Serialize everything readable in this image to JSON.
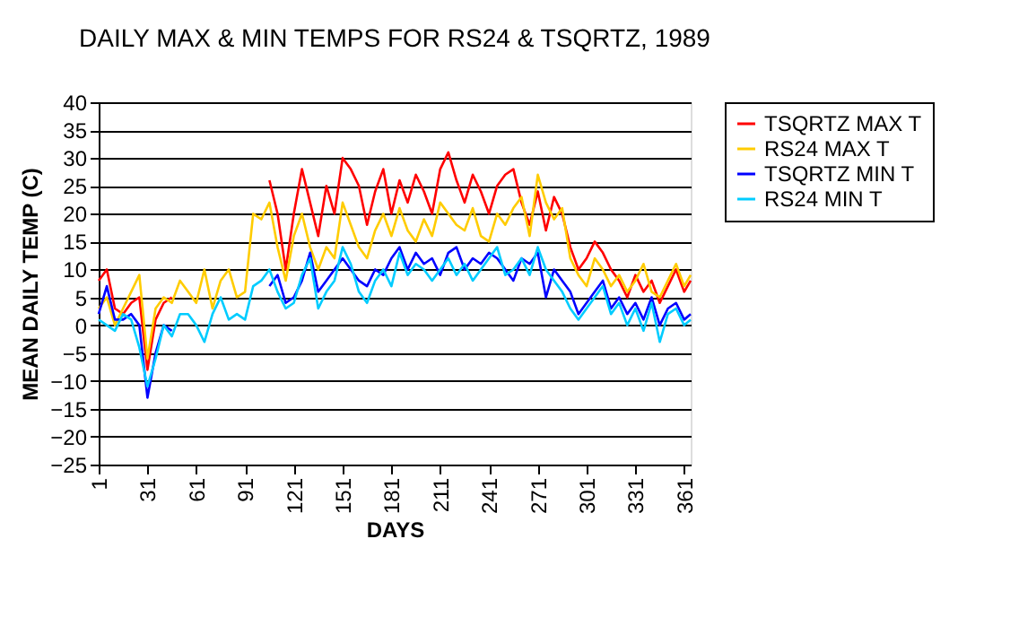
{
  "chart_data": {
    "type": "line",
    "title": "DAILY MAX & MIN TEMPS FOR RS24 & TSQRTZ, 1989",
    "xlabel": "DAYS",
    "ylabel": "MEAN DAILY TEMP (C)",
    "x": [
      1,
      6,
      11,
      16,
      21,
      26,
      31,
      36,
      41,
      46,
      51,
      56,
      61,
      66,
      71,
      76,
      81,
      86,
      91,
      96,
      101,
      106,
      111,
      116,
      121,
      126,
      131,
      136,
      141,
      146,
      151,
      156,
      161,
      166,
      171,
      176,
      181,
      186,
      191,
      196,
      201,
      206,
      211,
      216,
      221,
      226,
      231,
      236,
      241,
      246,
      251,
      256,
      261,
      266,
      271,
      276,
      281,
      286,
      291,
      296,
      301,
      306,
      311,
      316,
      321,
      326,
      331,
      336,
      341,
      346,
      351,
      356,
      361,
      365
    ],
    "series": [
      {
        "name": "TSQRTZ MAX T",
        "color": "#ff0000",
        "values": [
          8,
          10,
          3,
          2,
          4,
          5,
          -8,
          1,
          4,
          5,
          null,
          null,
          null,
          null,
          null,
          null,
          null,
          null,
          null,
          null,
          null,
          26,
          20,
          10,
          20,
          28,
          22,
          16,
          25,
          20,
          30,
          28,
          25,
          18,
          24,
          28,
          20,
          26,
          22,
          27,
          24,
          20,
          28,
          31,
          26,
          22,
          27,
          24,
          20,
          25,
          27,
          28,
          22,
          18,
          24,
          17,
          23,
          20,
          14,
          10,
          12,
          15,
          13,
          10,
          8,
          5,
          9,
          6,
          8,
          4,
          7,
          10,
          6,
          8
        ]
      },
      {
        "name": "RS24 MAX T",
        "color": "#ffcc00",
        "values": [
          3,
          5,
          0,
          3,
          6,
          9,
          -6,
          3,
          5,
          4,
          8,
          6,
          4,
          10,
          3,
          8,
          10,
          5,
          6,
          20,
          19,
          22,
          14,
          8,
          16,
          20,
          14,
          10,
          14,
          12,
          22,
          18,
          14,
          12,
          17,
          20,
          16,
          21,
          17,
          15,
          19,
          16,
          22,
          20,
          18,
          17,
          21,
          16,
          15,
          20,
          18,
          21,
          23,
          16,
          27,
          22,
          19,
          21,
          12,
          9,
          7,
          12,
          10,
          7,
          9,
          6,
          8,
          11,
          6,
          5,
          8,
          11,
          7,
          9
        ]
      },
      {
        "name": "TSQRTZ MIN T",
        "color": "#0000ff",
        "values": [
          2,
          7,
          1,
          1,
          2,
          0,
          -13,
          -5,
          0,
          -1,
          null,
          null,
          null,
          null,
          null,
          null,
          null,
          null,
          null,
          null,
          null,
          7,
          9,
          4,
          5,
          8,
          13,
          6,
          8,
          10,
          12,
          10,
          8,
          7,
          10,
          9,
          12,
          14,
          10,
          13,
          11,
          12,
          9,
          13,
          14,
          10,
          12,
          11,
          13,
          12,
          10,
          8,
          12,
          11,
          13,
          5,
          10,
          8,
          6,
          2,
          4,
          6,
          8,
          3,
          5,
          2,
          4,
          1,
          5,
          0,
          3,
          4,
          1,
          2
        ]
      },
      {
        "name": "RS24 MIN T",
        "color": "#00ccff",
        "values": [
          1,
          0,
          -1,
          2,
          1,
          -4,
          -11,
          -6,
          0,
          -2,
          2,
          2,
          0,
          -3,
          2,
          5,
          1,
          2,
          1,
          7,
          8,
          10,
          6,
          3,
          4,
          9,
          12,
          3,
          6,
          8,
          14,
          11,
          6,
          4,
          8,
          10,
          7,
          13,
          9,
          11,
          10,
          8,
          10,
          12,
          9,
          11,
          8,
          10,
          12,
          14,
          9,
          10,
          12,
          9,
          14,
          10,
          8,
          6,
          3,
          1,
          3,
          5,
          7,
          2,
          4,
          0,
          3,
          -1,
          4,
          -3,
          2,
          3,
          0,
          1
        ]
      }
    ],
    "xlim": [
      1,
      365
    ],
    "xticks": [
      1,
      31,
      61,
      91,
      121,
      151,
      181,
      211,
      241,
      271,
      301,
      331,
      361
    ],
    "ylim": [
      -25,
      40
    ],
    "yticks": [
      -25,
      -20,
      -15,
      -10,
      -5,
      0,
      5,
      10,
      15,
      20,
      25,
      30,
      35,
      40
    ],
    "grid": "y",
    "legend": "right",
    "line_style": "solid",
    "marker": "none"
  }
}
